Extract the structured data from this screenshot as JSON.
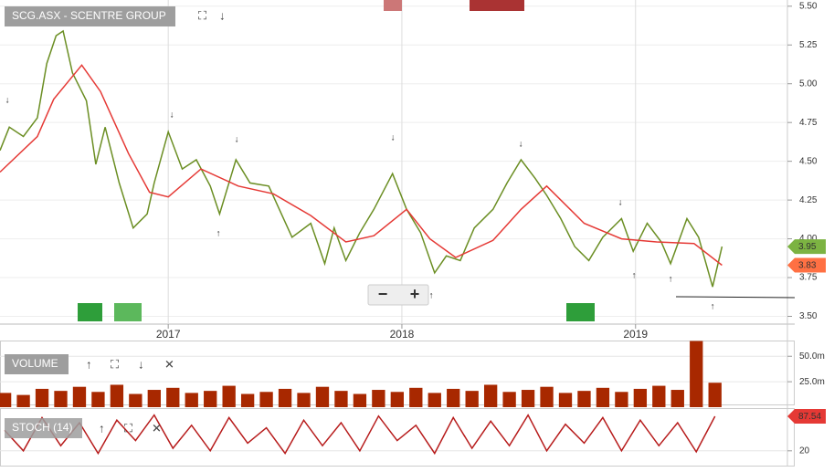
{
  "chart_data": [
    {
      "type": "line",
      "title": "SCG.ASX - SCENTRE GROUP",
      "xlim": [
        2016.28,
        2019.65
      ],
      "xticks": [
        2017,
        2018,
        2019
      ],
      "ylim": [
        3.45,
        5.54
      ],
      "yticks": [
        {
          "value": 3.5,
          "label": "3.50"
        },
        {
          "value": 3.75,
          "label": "3.75"
        },
        {
          "value": 4.0,
          "label": "4.00"
        },
        {
          "value": 4.25,
          "label": "4.25"
        },
        {
          "value": 4.5,
          "label": "4.50"
        },
        {
          "value": 4.75,
          "label": "4.75"
        },
        {
          "value": 5.0,
          "label": "5.00"
        },
        {
          "value": 5.25,
          "label": "5.25"
        },
        {
          "value": 5.5,
          "label": "5.50"
        }
      ],
      "grid": true,
      "series": [
        {
          "color": "#6b8e23",
          "x": [
            2016.28,
            2016.32,
            2016.38,
            2016.44,
            2016.48,
            2016.52,
            2016.55,
            2016.59,
            2016.65,
            2016.69,
            2016.73,
            2016.79,
            2016.85,
            2016.91,
            2016.94,
            2017.0,
            2017.06,
            2017.12,
            2017.18,
            2017.22,
            2017.29,
            2017.35,
            2017.43,
            2017.53,
            2017.61,
            2017.67,
            2017.71,
            2017.76,
            2017.82,
            2017.88,
            2017.96,
            2018.02,
            2018.08,
            2018.14,
            2018.19,
            2018.25,
            2018.31,
            2018.39,
            2018.45,
            2018.51,
            2018.57,
            2018.62,
            2018.68,
            2018.74,
            2018.8,
            2018.86,
            2018.94,
            2018.99,
            2019.05,
            2019.11,
            2019.15,
            2019.22,
            2019.27,
            2019.33,
            2019.37
          ],
          "values": [
            4.57,
            4.72,
            4.66,
            4.78,
            5.13,
            5.31,
            5.34,
            5.07,
            4.89,
            4.48,
            4.72,
            4.36,
            4.07,
            4.16,
            4.36,
            4.69,
            4.45,
            4.51,
            4.34,
            4.16,
            4.51,
            4.36,
            4.34,
            4.01,
            4.1,
            3.84,
            4.07,
            3.86,
            4.04,
            4.19,
            4.42,
            4.19,
            4.04,
            3.78,
            3.89,
            3.86,
            4.07,
            4.19,
            4.36,
            4.51,
            4.39,
            4.28,
            4.13,
            3.95,
            3.86,
            4.01,
            4.13,
            3.92,
            4.1,
            3.98,
            3.84,
            4.13,
            4.01,
            3.69,
            3.95
          ]
        },
        {
          "color": "#e53935",
          "x": [
            2016.28,
            2016.44,
            2016.51,
            2016.63,
            2016.71,
            2016.83,
            2016.92,
            2017.0,
            2017.14,
            2017.3,
            2017.45,
            2017.61,
            2017.76,
            2017.88,
            2018.02,
            2018.12,
            2018.23,
            2018.39,
            2018.51,
            2018.62,
            2018.78,
            2018.94,
            2019.09,
            2019.25,
            2019.37
          ],
          "values": [
            4.43,
            4.66,
            4.9,
            5.12,
            4.95,
            4.55,
            4.3,
            4.27,
            4.45,
            4.34,
            4.29,
            4.15,
            3.98,
            4.02,
            4.19,
            4.0,
            3.88,
            3.99,
            4.19,
            4.34,
            4.1,
            4.0,
            3.98,
            3.97,
            3.83
          ]
        }
      ]
    },
    {
      "type": "bar",
      "title": "VOLUME",
      "xlim": [
        2016.28,
        2019.65
      ],
      "ylim": [
        0,
        65
      ],
      "yticks": [
        {
          "value": 25,
          "label": "25.0m"
        },
        {
          "value": 50,
          "label": "50.0m"
        }
      ],
      "series": [
        {
          "color": "#a82800",
          "x": [
            2016.3,
            2016.38,
            2016.46,
            2016.54,
            2016.62,
            2016.7,
            2016.78,
            2016.86,
            2016.94,
            2017.02,
            2017.1,
            2017.18,
            2017.26,
            2017.34,
            2017.42,
            2017.5,
            2017.58,
            2017.66,
            2017.74,
            2017.82,
            2017.9,
            2017.98,
            2018.06,
            2018.14,
            2018.22,
            2018.3,
            2018.38,
            2018.46,
            2018.54,
            2018.62,
            2018.7,
            2018.78,
            2018.86,
            2018.94,
            2019.02,
            2019.1,
            2019.18,
            2019.26,
            2019.34
          ],
          "values": [
            14,
            12,
            18,
            16,
            20,
            15,
            22,
            13,
            17,
            19,
            14,
            16,
            21,
            13,
            15,
            18,
            14,
            20,
            16,
            13,
            17,
            15,
            19,
            14,
            18,
            16,
            22,
            15,
            17,
            20,
            14,
            16,
            19,
            15,
            18,
            21,
            17,
            65,
            24
          ]
        }
      ]
    },
    {
      "type": "line",
      "title": "STOCH (14)",
      "xlim": [
        2016.28,
        2019.65
      ],
      "ylim": [
        0,
        100
      ],
      "yticks": [
        20
      ],
      "series": [
        {
          "color": "#b71c1c",
          "x": [
            2016.3,
            2016.38,
            2016.46,
            2016.54,
            2016.62,
            2016.7,
            2016.78,
            2016.86,
            2016.94,
            2017.02,
            2017.1,
            2017.18,
            2017.26,
            2017.34,
            2017.42,
            2017.5,
            2017.58,
            2017.66,
            2017.74,
            2017.82,
            2017.9,
            2017.98,
            2018.06,
            2018.14,
            2018.22,
            2018.3,
            2018.38,
            2018.46,
            2018.54,
            2018.62,
            2018.7,
            2018.78,
            2018.86,
            2018.94,
            2019.02,
            2019.1,
            2019.18,
            2019.26,
            2019.34
          ],
          "values": [
            60,
            20,
            85,
            30,
            75,
            15,
            80,
            40,
            90,
            25,
            70,
            20,
            85,
            35,
            65,
            15,
            80,
            30,
            75,
            20,
            88,
            40,
            70,
            15,
            85,
            25,
            78,
            30,
            90,
            20,
            72,
            35,
            85,
            20,
            80,
            30,
            75,
            18,
            87.54
          ]
        }
      ]
    }
  ]
}
